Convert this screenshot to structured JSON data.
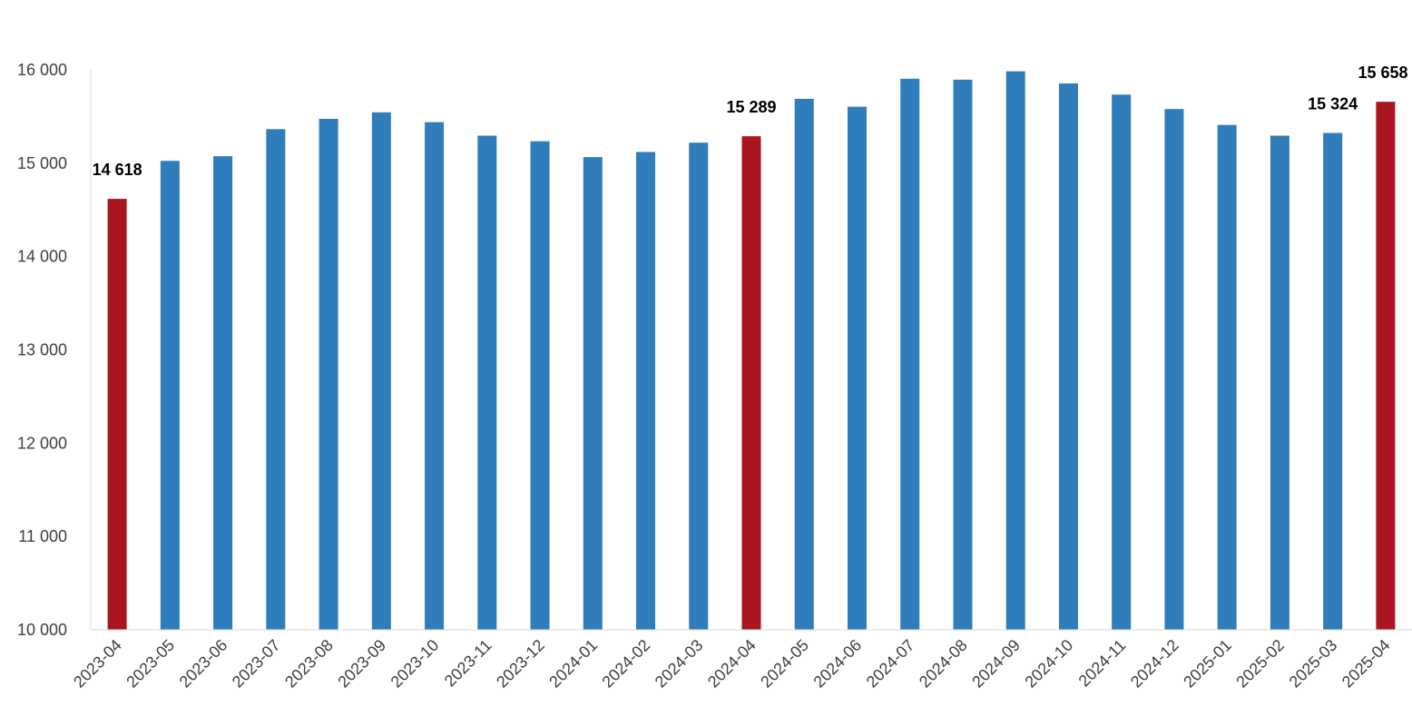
{
  "chart_data": {
    "type": "bar",
    "categories": [
      "2023-04",
      "2023-05",
      "2023-06",
      "2023-07",
      "2023-08",
      "2023-09",
      "2023-10",
      "2023-11",
      "2023-12",
      "2024-01",
      "2024-02",
      "2024-03",
      "2024-04",
      "2024-05",
      "2024-06",
      "2024-07",
      "2024-08",
      "2024-09",
      "2024-10",
      "2024-11",
      "2024-12",
      "2025-01",
      "2025-02",
      "2025-03",
      "2025-04"
    ],
    "values": [
      14618,
      15025,
      15075,
      15365,
      15475,
      15545,
      15440,
      15295,
      15235,
      15065,
      15120,
      15220,
      15289,
      15690,
      15605,
      15905,
      15895,
      15985,
      15855,
      15735,
      15580,
      15410,
      15295,
      15324,
      15658
    ],
    "highlight_indices": [
      0,
      12,
      24
    ],
    "data_labels": [
      {
        "index": 0,
        "text": "14 618"
      },
      {
        "index": 12,
        "text": "15 289"
      },
      {
        "index": 23,
        "text": "15 324"
      },
      {
        "index": 24,
        "text": "15 658"
      }
    ],
    "ylim": [
      10000,
      16000
    ],
    "yticks": [
      10000,
      11000,
      12000,
      13000,
      14000,
      15000,
      16000
    ],
    "ytick_labels": [
      "10 000",
      "11 000",
      "12 000",
      "13 000",
      "14 000",
      "15 000",
      "16 000"
    ],
    "grid": false,
    "colors": {
      "bar": "#2f7dba",
      "highlight": "#ab1520",
      "axis": "#d9d9d9"
    },
    "title": "",
    "xlabel": "",
    "ylabel": ""
  }
}
